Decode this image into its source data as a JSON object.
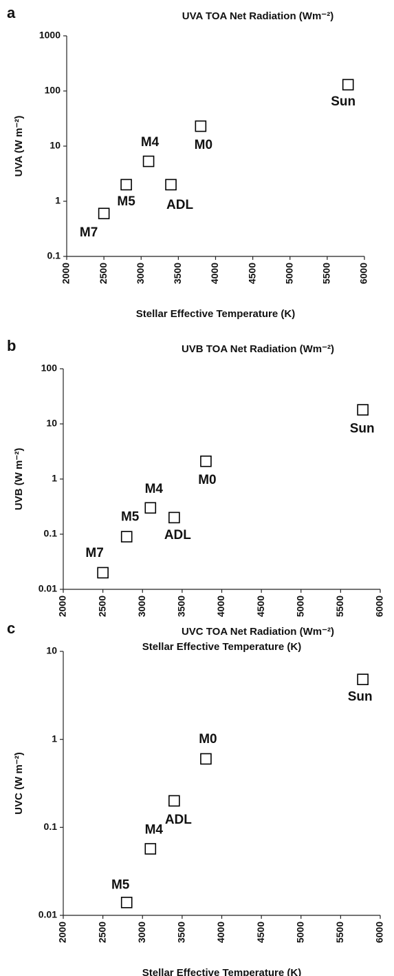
{
  "chart_data": [
    {
      "type": "scatter",
      "panel": "a",
      "title": "UVA  TOA Net Radiation (Wm⁻²)",
      "y_label": "UVA (W m⁻²)",
      "x_label": "Stellar Effective Temperature (K)",
      "x": [
        2500,
        2800,
        3100,
        3400,
        3800,
        5780
      ],
      "values": [
        0.6,
        2.0,
        5.3,
        2.0,
        23,
        130
      ],
      "labels": [
        "M7",
        "M5",
        "M4",
        "ADL",
        "M0",
        "Sun"
      ],
      "xlim": [
        2000,
        6000
      ],
      "xticks": [
        2000,
        2500,
        3000,
        3500,
        4000,
        4500,
        5000,
        5500,
        6000
      ],
      "ylim": [
        0.1,
        1000
      ],
      "yticks": [
        1000,
        100,
        10,
        1,
        0.1
      ],
      "log_y": true,
      "marker_color": "#000000"
    },
    {
      "type": "scatter",
      "panel": "b",
      "title": "UVB  TOA Net Radiation (Wm⁻²)",
      "y_label": "UVB (W m⁻²)",
      "x_label": "Stellar Effective Temperature (K)",
      "x": [
        2500,
        2800,
        3100,
        3400,
        3800,
        5780
      ],
      "values": [
        0.02,
        0.09,
        0.3,
        0.2,
        2.1,
        18
      ],
      "labels": [
        "M7",
        "M5",
        "M4",
        "ADL",
        "M0",
        "Sun"
      ],
      "xlim": [
        2000,
        6000
      ],
      "xticks": [
        2000,
        2500,
        3000,
        3500,
        4000,
        4500,
        5000,
        5500,
        6000
      ],
      "ylim": [
        0.01,
        100
      ],
      "yticks": [
        100,
        10,
        1,
        0.1,
        0.01
      ],
      "log_y": true,
      "marker_color": "#000000"
    },
    {
      "type": "scatter",
      "panel": "c",
      "title": "UVC  TOA Net Radiation (Wm⁻²)",
      "y_label": "UVC (W m⁻²)",
      "x_label": "Stellar Effective Temperature (K)",
      "x": [
        2800,
        3100,
        3400,
        3800,
        5780
      ],
      "values": [
        0.014,
        0.057,
        0.2,
        0.6,
        4.8
      ],
      "labels": [
        "M5",
        "M4",
        "ADL",
        "M0",
        "Sun"
      ],
      "xlim": [
        2000,
        6000
      ],
      "xticks": [
        2000,
        2500,
        3000,
        3500,
        4000,
        4500,
        5000,
        5500,
        6000
      ],
      "ylim": [
        0.01,
        10
      ],
      "yticks": [
        10,
        1,
        0.1,
        0.01
      ],
      "log_y": true,
      "marker_color": "#000000"
    }
  ]
}
